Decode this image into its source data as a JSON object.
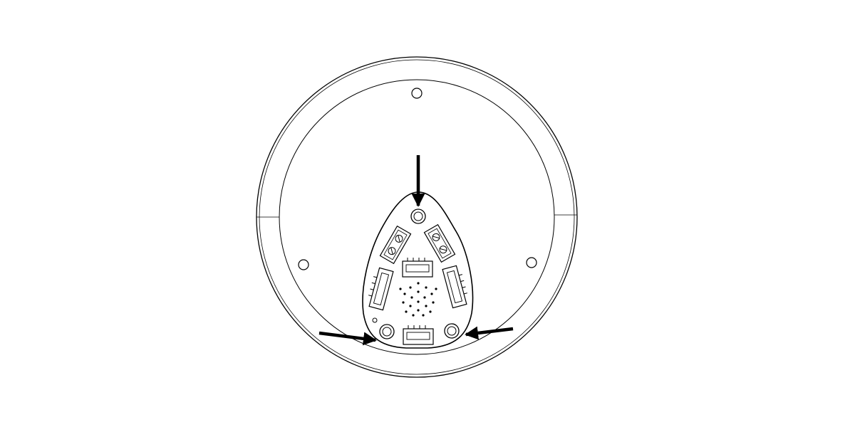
{
  "diagram": {
    "subject": "pcb-mounting-points",
    "colors": {
      "background": "#ffffff",
      "line": "#000000",
      "arrow": "#000000"
    },
    "arrows": [
      {
        "name": "arrow-top-mount",
        "points_to": "board-mount-hole-top"
      },
      {
        "name": "arrow-left-mount",
        "points_to": "board-mount-hole-bottom-left"
      },
      {
        "name": "arrow-right-mount",
        "points_to": "board-mount-hole-bottom-right"
      }
    ],
    "board": {
      "mount_holes": 3,
      "connectors": 4,
      "wire_terminals": 2,
      "speaker_holes": 20
    },
    "housing": {
      "outer_rings": 2,
      "inner_screw_holes": 3
    }
  }
}
